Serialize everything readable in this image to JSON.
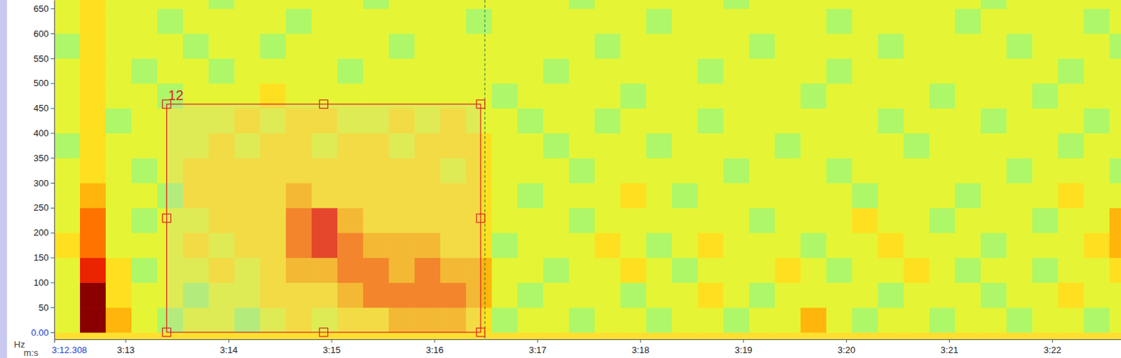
{
  "chart_data": {
    "type": "heatmap",
    "x_label": "m:s",
    "y_label": "Hz",
    "xlim": [
      192.308,
      202.67
    ],
    "ylim": [
      -14,
      667
    ],
    "xticks": [
      {
        "value": 192.308,
        "label": "3:12.308"
      },
      {
        "value": 193,
        "label": "3:13"
      },
      {
        "value": 194,
        "label": "3:14"
      },
      {
        "value": 195,
        "label": "3:15"
      },
      {
        "value": 196,
        "label": "3:16"
      },
      {
        "value": 197,
        "label": "3:17"
      },
      {
        "value": 198,
        "label": "3:18"
      },
      {
        "value": 199,
        "label": "3:19"
      },
      {
        "value": 200,
        "label": "3:20"
      },
      {
        "value": 201,
        "label": "3:21"
      },
      {
        "value": 202,
        "label": "3:22"
      }
    ],
    "yticks": [
      {
        "value": 0,
        "label": "0.00"
      },
      50,
      100,
      150,
      200,
      250,
      300,
      350,
      400,
      450,
      500,
      550,
      600,
      650
    ],
    "zlim": [
      0,
      10
    ],
    "x_bins": [
      192.308,
      192.558,
      192.808,
      193.058,
      193.308,
      193.558,
      193.808,
      194.058,
      194.308,
      194.558,
      194.808,
      195.058,
      195.308,
      195.558,
      195.808,
      196.058,
      196.308,
      196.558,
      196.808,
      197.058,
      197.308,
      197.558,
      197.808,
      198.058,
      198.308,
      198.558,
      198.808,
      199.058,
      199.308,
      199.558,
      199.808,
      200.058,
      200.308,
      200.558,
      200.808,
      201.058,
      201.308,
      201.558,
      201.808,
      202.058,
      202.308,
      202.558,
      202.808
    ],
    "y_bins": [
      0,
      50,
      100,
      150,
      200,
      250,
      300,
      350,
      400,
      450,
      500,
      550,
      600,
      650,
      700
    ],
    "cells": [
      [
        5,
        10,
        7,
        5,
        4,
        5,
        5,
        4,
        5,
        6,
        5,
        6,
        6,
        7,
        7,
        7,
        6,
        4,
        5,
        5,
        4,
        5,
        5,
        4,
        5,
        5,
        4,
        5,
        5,
        7,
        5,
        4,
        5,
        5,
        4,
        5,
        5,
        4,
        5,
        5,
        4,
        5
      ],
      [
        5,
        10,
        6,
        5,
        5,
        4,
        5,
        5,
        6,
        6,
        6,
        7,
        8,
        8,
        8,
        8,
        7,
        5,
        4,
        5,
        5,
        5,
        4,
        5,
        5,
        6,
        5,
        4,
        5,
        5,
        5,
        5,
        4,
        5,
        5,
        5,
        4,
        5,
        5,
        6,
        5,
        5
      ],
      [
        5,
        9,
        6,
        4,
        5,
        5,
        6,
        5,
        6,
        7,
        7,
        8,
        8,
        7,
        8,
        7,
        7,
        5,
        5,
        4,
        5,
        5,
        6,
        5,
        4,
        5,
        5,
        5,
        6,
        5,
        4,
        5,
        5,
        6,
        5,
        4,
        5,
        5,
        4,
        5,
        5,
        6
      ],
      [
        6,
        8,
        5,
        5,
        5,
        6,
        5,
        6,
        6,
        8,
        9,
        8,
        7,
        7,
        7,
        6,
        6,
        4,
        5,
        5,
        5,
        6,
        5,
        4,
        5,
        6,
        5,
        5,
        5,
        4,
        5,
        5,
        6,
        5,
        5,
        5,
        4,
        5,
        5,
        5,
        6,
        7
      ],
      [
        5,
        8,
        5,
        4,
        5,
        5,
        6,
        6,
        6,
        8,
        9,
        7,
        6,
        6,
        6,
        6,
        6,
        5,
        5,
        5,
        4,
        5,
        5,
        5,
        5,
        5,
        5,
        4,
        5,
        5,
        5,
        6,
        5,
        5,
        4,
        5,
        5,
        5,
        4,
        5,
        5,
        7
      ],
      [
        5,
        7,
        5,
        5,
        4,
        6,
        6,
        6,
        6,
        7,
        6,
        6,
        6,
        6,
        6,
        6,
        6,
        5,
        4,
        5,
        5,
        5,
        6,
        5,
        4,
        5,
        5,
        5,
        5,
        5,
        5,
        4,
        5,
        5,
        5,
        4,
        5,
        5,
        5,
        6,
        5,
        5
      ],
      [
        5,
        6,
        5,
        4,
        5,
        6,
        6,
        6,
        6,
        6,
        6,
        6,
        6,
        6,
        6,
        5,
        6,
        5,
        5,
        5,
        4,
        5,
        5,
        5,
        5,
        5,
        4,
        5,
        5,
        5,
        4,
        5,
        5,
        5,
        5,
        5,
        5,
        4,
        5,
        5,
        5,
        4
      ],
      [
        4,
        6,
        5,
        5,
        5,
        5,
        6,
        5,
        6,
        6,
        5,
        6,
        6,
        5,
        6,
        6,
        6,
        5,
        5,
        4,
        5,
        5,
        5,
        4,
        5,
        5,
        5,
        5,
        4,
        5,
        5,
        5,
        5,
        4,
        5,
        5,
        5,
        5,
        5,
        4,
        5,
        5
      ],
      [
        5,
        6,
        4,
        5,
        5,
        5,
        5,
        6,
        5,
        6,
        6,
        5,
        5,
        6,
        5,
        6,
        5,
        5,
        4,
        5,
        5,
        4,
        5,
        5,
        5,
        4,
        5,
        5,
        5,
        5,
        5,
        5,
        4,
        5,
        5,
        5,
        4,
        5,
        5,
        5,
        4,
        5
      ],
      [
        5,
        6,
        5,
        5,
        4,
        5,
        5,
        5,
        6,
        5,
        5,
        5,
        5,
        5,
        5,
        5,
        5,
        4,
        5,
        5,
        5,
        5,
        4,
        5,
        5,
        5,
        5,
        5,
        5,
        4,
        5,
        5,
        5,
        5,
        4,
        5,
        5,
        5,
        4,
        5,
        5,
        5
      ],
      [
        5,
        6,
        5,
        4,
        5,
        5,
        4,
        5,
        5,
        5,
        5,
        4,
        5,
        5,
        5,
        5,
        5,
        5,
        5,
        4,
        5,
        5,
        5,
        5,
        5,
        4,
        5,
        5,
        5,
        5,
        4,
        5,
        5,
        5,
        5,
        5,
        5,
        5,
        5,
        4,
        5,
        5
      ],
      [
        4,
        6,
        5,
        5,
        5,
        4,
        5,
        5,
        4,
        5,
        5,
        5,
        5,
        4,
        5,
        5,
        5,
        5,
        5,
        5,
        5,
        4,
        5,
        5,
        5,
        5,
        5,
        4,
        5,
        5,
        5,
        5,
        4,
        5,
        5,
        5,
        5,
        4,
        5,
        5,
        5,
        4
      ],
      [
        5,
        6,
        5,
        5,
        4,
        5,
        5,
        5,
        5,
        4,
        5,
        5,
        5,
        5,
        5,
        5,
        4,
        5,
        5,
        5,
        5,
        5,
        5,
        4,
        5,
        5,
        5,
        5,
        5,
        5,
        4,
        5,
        5,
        5,
        5,
        4,
        5,
        5,
        5,
        5,
        4,
        5
      ],
      [
        5,
        6,
        5,
        5,
        5,
        5,
        4,
        5,
        5,
        5,
        5,
        5,
        4,
        5,
        5,
        5,
        5,
        5,
        5,
        5,
        4,
        5,
        5,
        5,
        5,
        5,
        4,
        5,
        5,
        5,
        5,
        5,
        5,
        5,
        5,
        5,
        4,
        5,
        5,
        5,
        5,
        5
      ]
    ],
    "annotations": [
      {
        "label": "12",
        "x0": 193.4,
        "x1": 196.45,
        "y0": 0,
        "y1": 458,
        "color": "#e02020"
      }
    ]
  }
}
